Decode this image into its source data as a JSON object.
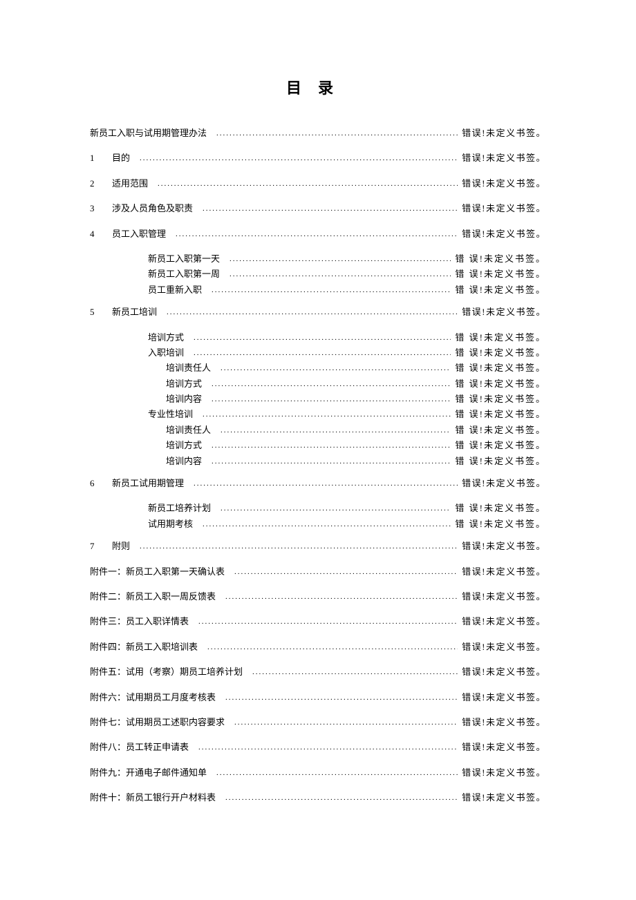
{
  "title": "目录",
  "error_text": "错误!未定义书签。",
  "error_text_spaced": "错 误!未定义书签。",
  "leader_dots": "........................................................................................................................................................",
  "entries": [
    {
      "type": "top0",
      "label": "新员工入职与试用期管理办法"
    },
    {
      "type": "top",
      "num": "1",
      "label": "目的"
    },
    {
      "type": "top",
      "num": "2",
      "label": "适用范围"
    },
    {
      "type": "top",
      "num": "3",
      "label": "涉及人员角色及职责"
    },
    {
      "type": "top",
      "num": "4",
      "label": "员工入职管理"
    },
    {
      "type": "sub1",
      "label": "新员工入职第一天"
    },
    {
      "type": "sub1",
      "label": "新员工入职第一周"
    },
    {
      "type": "sub1",
      "label": "员工重新入职"
    },
    {
      "type": "gap"
    },
    {
      "type": "top",
      "num": "5",
      "label": "新员工培训"
    },
    {
      "type": "sub1",
      "label": "培训方式"
    },
    {
      "type": "sub1",
      "label": "入职培训"
    },
    {
      "type": "sub2",
      "label": "培训责任人"
    },
    {
      "type": "sub2",
      "label": "培训方式"
    },
    {
      "type": "sub2",
      "label": "培训内容"
    },
    {
      "type": "sub1",
      "label": "专业性培训"
    },
    {
      "type": "sub2",
      "label": "培训责任人"
    },
    {
      "type": "sub2",
      "label": "培训方式"
    },
    {
      "type": "sub2",
      "label": "培训内容"
    },
    {
      "type": "gap"
    },
    {
      "type": "top",
      "num": "6",
      "label": "新员工试用期管理"
    },
    {
      "type": "sub1",
      "label": "新员工培养计划"
    },
    {
      "type": "sub1",
      "label": "试用期考核"
    },
    {
      "type": "gap"
    },
    {
      "type": "top",
      "num": "7",
      "label": "附则"
    },
    {
      "type": "top0",
      "label": "附件一：新员工入职第一天确认表"
    },
    {
      "type": "top0",
      "label": "附件二：新员工入职一周反馈表"
    },
    {
      "type": "top0",
      "label": "附件三：员工入职详情表"
    },
    {
      "type": "top0",
      "label": "附件四：新员工入职培训表"
    },
    {
      "type": "top0",
      "label": "附件五：试用（考察）期员工培养计划"
    },
    {
      "type": "top0",
      "label": "附件六：试用期员工月度考核表"
    },
    {
      "type": "top0",
      "label": "附件七：试用期员工述职内容要求"
    },
    {
      "type": "top0",
      "label": "附件八：员工转正申请表"
    },
    {
      "type": "top0",
      "label": "附件九：开通电子邮件通知单"
    },
    {
      "type": "top0",
      "label": "附件十：新员工银行开户材料表"
    }
  ]
}
